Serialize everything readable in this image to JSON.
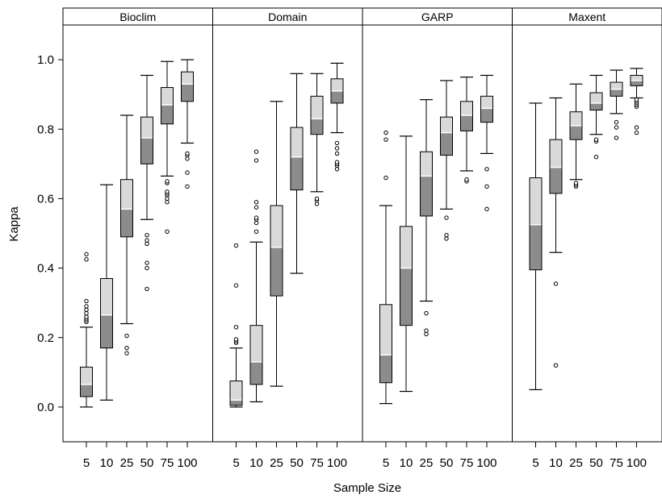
{
  "chart_data": {
    "type": "boxplot",
    "ylabel": "Kappa",
    "xlabel": "Sample Size",
    "ylim": [
      -0.1,
      1.1
    ],
    "yticks": [
      0.0,
      0.2,
      0.4,
      0.6,
      0.8,
      1.0
    ],
    "grid": false,
    "categories": [
      "5",
      "10",
      "25",
      "50",
      "75",
      "100"
    ],
    "colors": {
      "upper_box": "#d9d9d9",
      "lower_box": "#8c8c8c",
      "median": "#ffffff",
      "frame": "#000000"
    },
    "panels": [
      {
        "name": "Bioclim",
        "boxes": [
          {
            "size": "5",
            "whislo": 0.0,
            "q1": 0.03,
            "med": 0.065,
            "q3": 0.115,
            "whishi": 0.23,
            "fliers": [
              0.245,
              0.25,
              0.255,
              0.26,
              0.27,
              0.28,
              0.29,
              0.305,
              0.425,
              0.44
            ]
          },
          {
            "size": "10",
            "whislo": 0.02,
            "q1": 0.17,
            "med": 0.265,
            "q3": 0.37,
            "whishi": 0.64,
            "fliers": []
          },
          {
            "size": "25",
            "whislo": 0.24,
            "q1": 0.49,
            "med": 0.57,
            "q3": 0.655,
            "whishi": 0.84,
            "fliers": [
              0.155,
              0.17,
              0.205
            ]
          },
          {
            "size": "50",
            "whislo": 0.54,
            "q1": 0.7,
            "med": 0.775,
            "q3": 0.835,
            "whishi": 0.955,
            "fliers": [
              0.34,
              0.4,
              0.415,
              0.47,
              0.48,
              0.495
            ]
          },
          {
            "size": "75",
            "whislo": 0.665,
            "q1": 0.815,
            "med": 0.87,
            "q3": 0.92,
            "whishi": 0.995,
            "fliers": [
              0.505,
              0.59,
              0.6,
              0.61,
              0.615,
              0.62,
              0.645,
              0.65
            ]
          },
          {
            "size": "100",
            "whislo": 0.76,
            "q1": 0.88,
            "med": 0.93,
            "q3": 0.965,
            "whishi": 1.0,
            "fliers": [
              0.635,
              0.675,
              0.715,
              0.725,
              0.73
            ]
          }
        ]
      },
      {
        "name": "Domain",
        "boxes": [
          {
            "size": "5",
            "whislo": 0.0,
            "q1": 0.005,
            "med": 0.02,
            "q3": 0.075,
            "whishi": 0.17,
            "fliers": [
              0.185,
              0.19,
              0.195,
              0.23,
              0.35,
              0.465
            ]
          },
          {
            "size": "10",
            "whislo": 0.015,
            "q1": 0.065,
            "med": 0.13,
            "q3": 0.235,
            "whishi": 0.475,
            "fliers": [
              0.505,
              0.53,
              0.54,
              0.545,
              0.575,
              0.59,
              0.71,
              0.735
            ]
          },
          {
            "size": "25",
            "whislo": 0.06,
            "q1": 0.32,
            "med": 0.46,
            "q3": 0.58,
            "whishi": 0.88,
            "fliers": []
          },
          {
            "size": "50",
            "whislo": 0.385,
            "q1": 0.625,
            "med": 0.72,
            "q3": 0.805,
            "whishi": 0.96,
            "fliers": []
          },
          {
            "size": "75",
            "whislo": 0.62,
            "q1": 0.785,
            "med": 0.83,
            "q3": 0.895,
            "whishi": 0.96,
            "fliers": [
              0.585,
              0.595,
              0.6
            ]
          },
          {
            "size": "100",
            "whislo": 0.79,
            "q1": 0.875,
            "med": 0.91,
            "q3": 0.945,
            "whishi": 0.99,
            "fliers": [
              0.685,
              0.695,
              0.7,
              0.705,
              0.73,
              0.745,
              0.76
            ]
          }
        ]
      },
      {
        "name": "GARP",
        "boxes": [
          {
            "size": "5",
            "whislo": 0.01,
            "q1": 0.07,
            "med": 0.15,
            "q3": 0.295,
            "whishi": 0.58,
            "fliers": [
              0.66,
              0.77,
              0.79
            ]
          },
          {
            "size": "10",
            "whislo": 0.045,
            "q1": 0.235,
            "med": 0.4,
            "q3": 0.52,
            "whishi": 0.78,
            "fliers": []
          },
          {
            "size": "25",
            "whislo": 0.305,
            "q1": 0.55,
            "med": 0.665,
            "q3": 0.735,
            "whishi": 0.885,
            "fliers": [
              0.21,
              0.22,
              0.27
            ]
          },
          {
            "size": "50",
            "whislo": 0.57,
            "q1": 0.725,
            "med": 0.79,
            "q3": 0.835,
            "whishi": 0.94,
            "fliers": [
              0.485,
              0.495,
              0.545
            ]
          },
          {
            "size": "75",
            "whislo": 0.68,
            "q1": 0.795,
            "med": 0.84,
            "q3": 0.88,
            "whishi": 0.95,
            "fliers": [
              0.65,
              0.655
            ]
          },
          {
            "size": "100",
            "whislo": 0.73,
            "q1": 0.82,
            "med": 0.86,
            "q3": 0.895,
            "whishi": 0.955,
            "fliers": [
              0.57,
              0.635,
              0.685
            ]
          }
        ]
      },
      {
        "name": "Maxent",
        "boxes": [
          {
            "size": "5",
            "whislo": 0.05,
            "q1": 0.395,
            "med": 0.525,
            "q3": 0.66,
            "whishi": 0.875,
            "fliers": []
          },
          {
            "size": "10",
            "whislo": 0.445,
            "q1": 0.615,
            "med": 0.69,
            "q3": 0.77,
            "whishi": 0.89,
            "fliers": [
              0.12,
              0.355
            ]
          },
          {
            "size": "25",
            "whislo": 0.655,
            "q1": 0.77,
            "med": 0.81,
            "q3": 0.85,
            "whishi": 0.93,
            "fliers": [
              0.635,
              0.64,
              0.645
            ]
          },
          {
            "size": "50",
            "whislo": 0.785,
            "q1": 0.855,
            "med": 0.875,
            "q3": 0.905,
            "whishi": 0.955,
            "fliers": [
              0.72,
              0.765,
              0.77
            ]
          },
          {
            "size": "75",
            "whislo": 0.845,
            "q1": 0.895,
            "med": 0.915,
            "q3": 0.935,
            "whishi": 0.97,
            "fliers": [
              0.775,
              0.805,
              0.82
            ]
          },
          {
            "size": "100",
            "whislo": 0.89,
            "q1": 0.925,
            "med": 0.94,
            "q3": 0.955,
            "whishi": 0.975,
            "fliers": [
              0.79,
              0.805,
              0.865,
              0.87,
              0.875,
              0.88,
              0.885
            ]
          }
        ]
      }
    ]
  }
}
